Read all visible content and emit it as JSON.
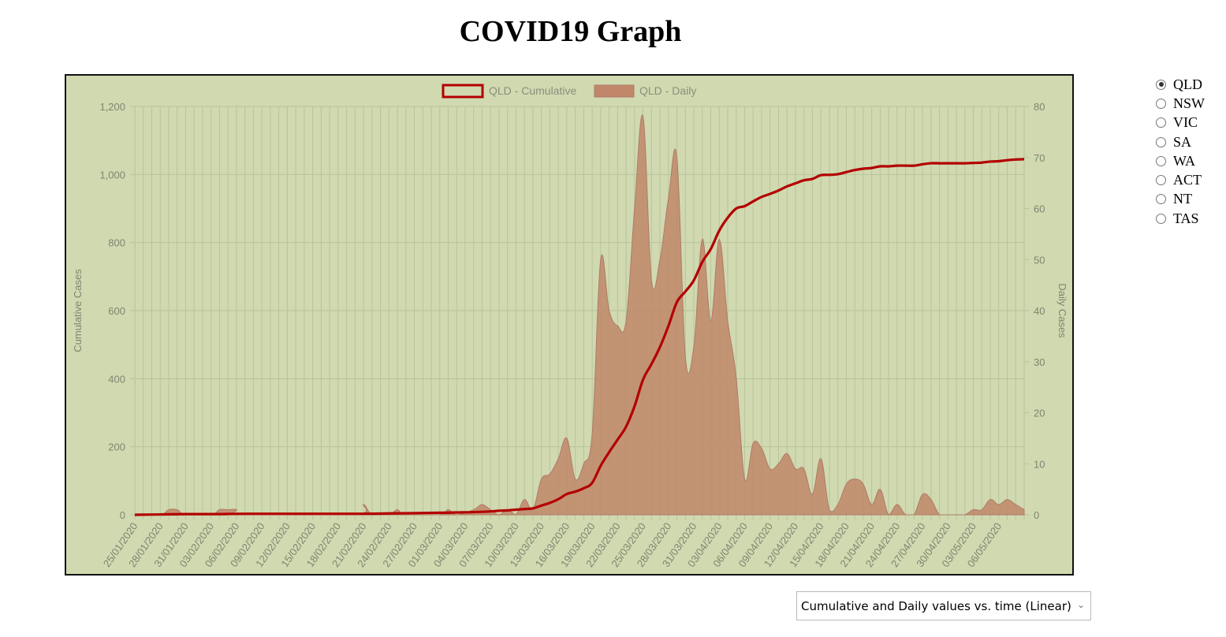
{
  "page": {
    "title": "COVID19 Graph"
  },
  "states": {
    "options": [
      "QLD",
      "NSW",
      "VIC",
      "SA",
      "WA",
      "ACT",
      "NT",
      "TAS"
    ],
    "selected": "QLD"
  },
  "view_select": {
    "value": "Cumulative and Daily values vs. time (Linear)"
  },
  "colors": {
    "background": "#d0d9b0",
    "cumulative_line": "#b30000",
    "daily_fill": "#c0876a",
    "daily_stroke": "#b07a66",
    "grid": "#b9c49a"
  },
  "chart_data": {
    "type": "line",
    "title": "",
    "legend_position": "top",
    "grid": true,
    "x_tick_labels": [
      "25/01/2020",
      "28/01/2020",
      "31/01/2020",
      "03/02/2020",
      "06/02/2020",
      "09/02/2020",
      "12/02/2020",
      "15/02/2020",
      "18/02/2020",
      "21/02/2020",
      "24/02/2020",
      "27/02/2020",
      "01/03/2020",
      "04/03/2020",
      "07/03/2020",
      "10/03/2020",
      "13/03/2020",
      "16/03/2020",
      "19/03/2020",
      "22/03/2020",
      "25/03/2020",
      "28/03/2020",
      "31/03/2020",
      "03/04/2020",
      "06/04/2020",
      "09/04/2020",
      "12/04/2020",
      "15/04/2020",
      "18/04/2020",
      "21/04/2020",
      "24/04/2020",
      "27/04/2020",
      "30/04/2020",
      "03/05/2020",
      "06/05/2020"
    ],
    "x_start": "25/01/2020",
    "x_end": "09/05/2020",
    "y_left": {
      "label": "Cumulative Cases",
      "ylim": [
        0,
        1200
      ],
      "ticks": [
        "0",
        "200",
        "400",
        "600",
        "800",
        "1,000",
        "1,200"
      ]
    },
    "y_right": {
      "label": "Daily Cases",
      "ylim": [
        0,
        80
      ],
      "ticks": [
        "0",
        "10",
        "20",
        "30",
        "40",
        "50",
        "60",
        "70",
        "80"
      ]
    },
    "series": [
      {
        "name": "QLD - Cumulative",
        "axis": "left",
        "type": "line",
        "points": [
          [
            "25/01/2020",
            0
          ],
          [
            "28/01/2020",
            1
          ],
          [
            "31/01/2020",
            2
          ],
          [
            "04/02/2020",
            2
          ],
          [
            "07/02/2020",
            3
          ],
          [
            "20/02/2020",
            3
          ],
          [
            "24/02/2020",
            4
          ],
          [
            "01/03/2020",
            6
          ],
          [
            "03/03/2020",
            7
          ],
          [
            "05/03/2020",
            8
          ],
          [
            "07/03/2020",
            10
          ],
          [
            "08/03/2020",
            12
          ],
          [
            "09/03/2020",
            13
          ],
          [
            "10/03/2020",
            15
          ],
          [
            "11/03/2020",
            17
          ],
          [
            "12/03/2020",
            19
          ],
          [
            "13/03/2020",
            27
          ],
          [
            "14/03/2020",
            35
          ],
          [
            "15/03/2020",
            46
          ],
          [
            "16/03/2020",
            61
          ],
          [
            "17/03/2020",
            68
          ],
          [
            "18/03/2020",
            78
          ],
          [
            "19/03/2020",
            94
          ],
          [
            "20/03/2020",
            144
          ],
          [
            "21/03/2020",
            184
          ],
          [
            "22/03/2020",
            221
          ],
          [
            "23/03/2020",
            259
          ],
          [
            "24/03/2020",
            319
          ],
          [
            "25/03/2020",
            397
          ],
          [
            "26/03/2020",
            443
          ],
          [
            "27/03/2020",
            493
          ],
          [
            "28/03/2020",
            555
          ],
          [
            "29/03/2020",
            625
          ],
          [
            "30/03/2020",
            656
          ],
          [
            "31/03/2020",
            689
          ],
          [
            "01/04/2020",
            743
          ],
          [
            "02/04/2020",
            781
          ],
          [
            "03/04/2020",
            835
          ],
          [
            "04/04/2020",
            873
          ],
          [
            "05/04/2020",
            900
          ],
          [
            "06/04/2020",
            907
          ],
          [
            "07/04/2020",
            921
          ],
          [
            "08/04/2020",
            934
          ],
          [
            "09/04/2020",
            943
          ],
          [
            "10/04/2020",
            953
          ],
          [
            "11/04/2020",
            965
          ],
          [
            "12/04/2020",
            974
          ],
          [
            "13/04/2020",
            983
          ],
          [
            "14/04/2020",
            987
          ],
          [
            "15/04/2020",
            998
          ],
          [
            "16/04/2020",
            999
          ],
          [
            "17/04/2020",
            1001
          ],
          [
            "18/04/2020",
            1007
          ],
          [
            "19/04/2020",
            1013
          ],
          [
            "20/04/2020",
            1017
          ],
          [
            "21/04/2020",
            1019
          ],
          [
            "22/04/2020",
            1024
          ],
          [
            "23/04/2020",
            1024
          ],
          [
            "24/04/2020",
            1026
          ],
          [
            "25/04/2020",
            1026
          ],
          [
            "26/04/2020",
            1026
          ],
          [
            "27/04/2020",
            1030
          ],
          [
            "28/04/2020",
            1033
          ],
          [
            "29/04/2020",
            1033
          ],
          [
            "30/04/2020",
            1033
          ],
          [
            "01/05/2020",
            1033
          ],
          [
            "02/05/2020",
            1033
          ],
          [
            "03/05/2020",
            1034
          ],
          [
            "04/05/2020",
            1035
          ],
          [
            "05/05/2020",
            1038
          ],
          [
            "06/05/2020",
            1039
          ],
          [
            "07/05/2020",
            1042
          ],
          [
            "08/05/2020",
            1044
          ],
          [
            "09/05/2020",
            1045
          ]
        ]
      },
      {
        "name": "QLD - Daily",
        "axis": "right",
        "type": "area",
        "points": [
          [
            "25/01/2020",
            0
          ],
          [
            "28/01/2020",
            0
          ],
          [
            "29/01/2020",
            1
          ],
          [
            "30/01/2020",
            1
          ],
          [
            "31/01/2020",
            0
          ],
          [
            "03/02/2020",
            0
          ],
          [
            "04/02/2020",
            1
          ],
          [
            "05/02/2020",
            1
          ],
          [
            "06/02/2020",
            1
          ],
          [
            "07/02/2020",
            0
          ],
          [
            "20/02/2020",
            0
          ],
          [
            "21/02/2020",
            2
          ],
          [
            "22/02/2020",
            0
          ],
          [
            "24/02/2020",
            0
          ],
          [
            "25/02/2020",
            1
          ],
          [
            "26/02/2020",
            0
          ],
          [
            "01/03/2020",
            0
          ],
          [
            "02/03/2020",
            1
          ],
          [
            "03/03/2020",
            0
          ],
          [
            "05/03/2020",
            1
          ],
          [
            "06/03/2020",
            2
          ],
          [
            "07/03/2020",
            1
          ],
          [
            "08/03/2020",
            0
          ],
          [
            "09/03/2020",
            1
          ],
          [
            "10/03/2020",
            0
          ],
          [
            "11/03/2020",
            3
          ],
          [
            "12/03/2020",
            1
          ],
          [
            "13/03/2020",
            7
          ],
          [
            "14/03/2020",
            8
          ],
          [
            "15/03/2020",
            11
          ],
          [
            "16/03/2020",
            15
          ],
          [
            "17/03/2020",
            7
          ],
          [
            "18/03/2020",
            10
          ],
          [
            "19/03/2020",
            16
          ],
          [
            "20/03/2020",
            50
          ],
          [
            "21/03/2020",
            40
          ],
          [
            "22/03/2020",
            37
          ],
          [
            "23/03/2020",
            38
          ],
          [
            "24/03/2020",
            60
          ],
          [
            "25/03/2020",
            78
          ],
          [
            "26/03/2020",
            46
          ],
          [
            "27/03/2020",
            50
          ],
          [
            "28/03/2020",
            62
          ],
          [
            "29/03/2020",
            70
          ],
          [
            "30/03/2020",
            31
          ],
          [
            "31/03/2020",
            33
          ],
          [
            "01/04/2020",
            54
          ],
          [
            "02/04/2020",
            38
          ],
          [
            "03/04/2020",
            54
          ],
          [
            "04/04/2020",
            38
          ],
          [
            "05/04/2020",
            27
          ],
          [
            "06/04/2020",
            7
          ],
          [
            "07/04/2020",
            14
          ],
          [
            "08/04/2020",
            13
          ],
          [
            "09/04/2020",
            9
          ],
          [
            "10/04/2020",
            10
          ],
          [
            "11/04/2020",
            12
          ],
          [
            "12/04/2020",
            9
          ],
          [
            "13/04/2020",
            9
          ],
          [
            "14/04/2020",
            4
          ],
          [
            "15/04/2020",
            11
          ],
          [
            "16/04/2020",
            1
          ],
          [
            "17/04/2020",
            2
          ],
          [
            "18/04/2020",
            6
          ],
          [
            "19/04/2020",
            7
          ],
          [
            "20/04/2020",
            6
          ],
          [
            "21/04/2020",
            2
          ],
          [
            "22/04/2020",
            5
          ],
          [
            "23/04/2020",
            0
          ],
          [
            "24/04/2020",
            2
          ],
          [
            "25/04/2020",
            0
          ],
          [
            "26/04/2020",
            0
          ],
          [
            "27/04/2020",
            4
          ],
          [
            "28/04/2020",
            3
          ],
          [
            "29/04/2020",
            0
          ],
          [
            "30/04/2020",
            0
          ],
          [
            "01/05/2020",
            0
          ],
          [
            "02/05/2020",
            0
          ],
          [
            "03/05/2020",
            1
          ],
          [
            "04/05/2020",
            1
          ],
          [
            "05/05/2020",
            3
          ],
          [
            "06/05/2020",
            2
          ],
          [
            "07/05/2020",
            3
          ],
          [
            "08/05/2020",
            2
          ],
          [
            "09/05/2020",
            1
          ]
        ]
      }
    ]
  }
}
